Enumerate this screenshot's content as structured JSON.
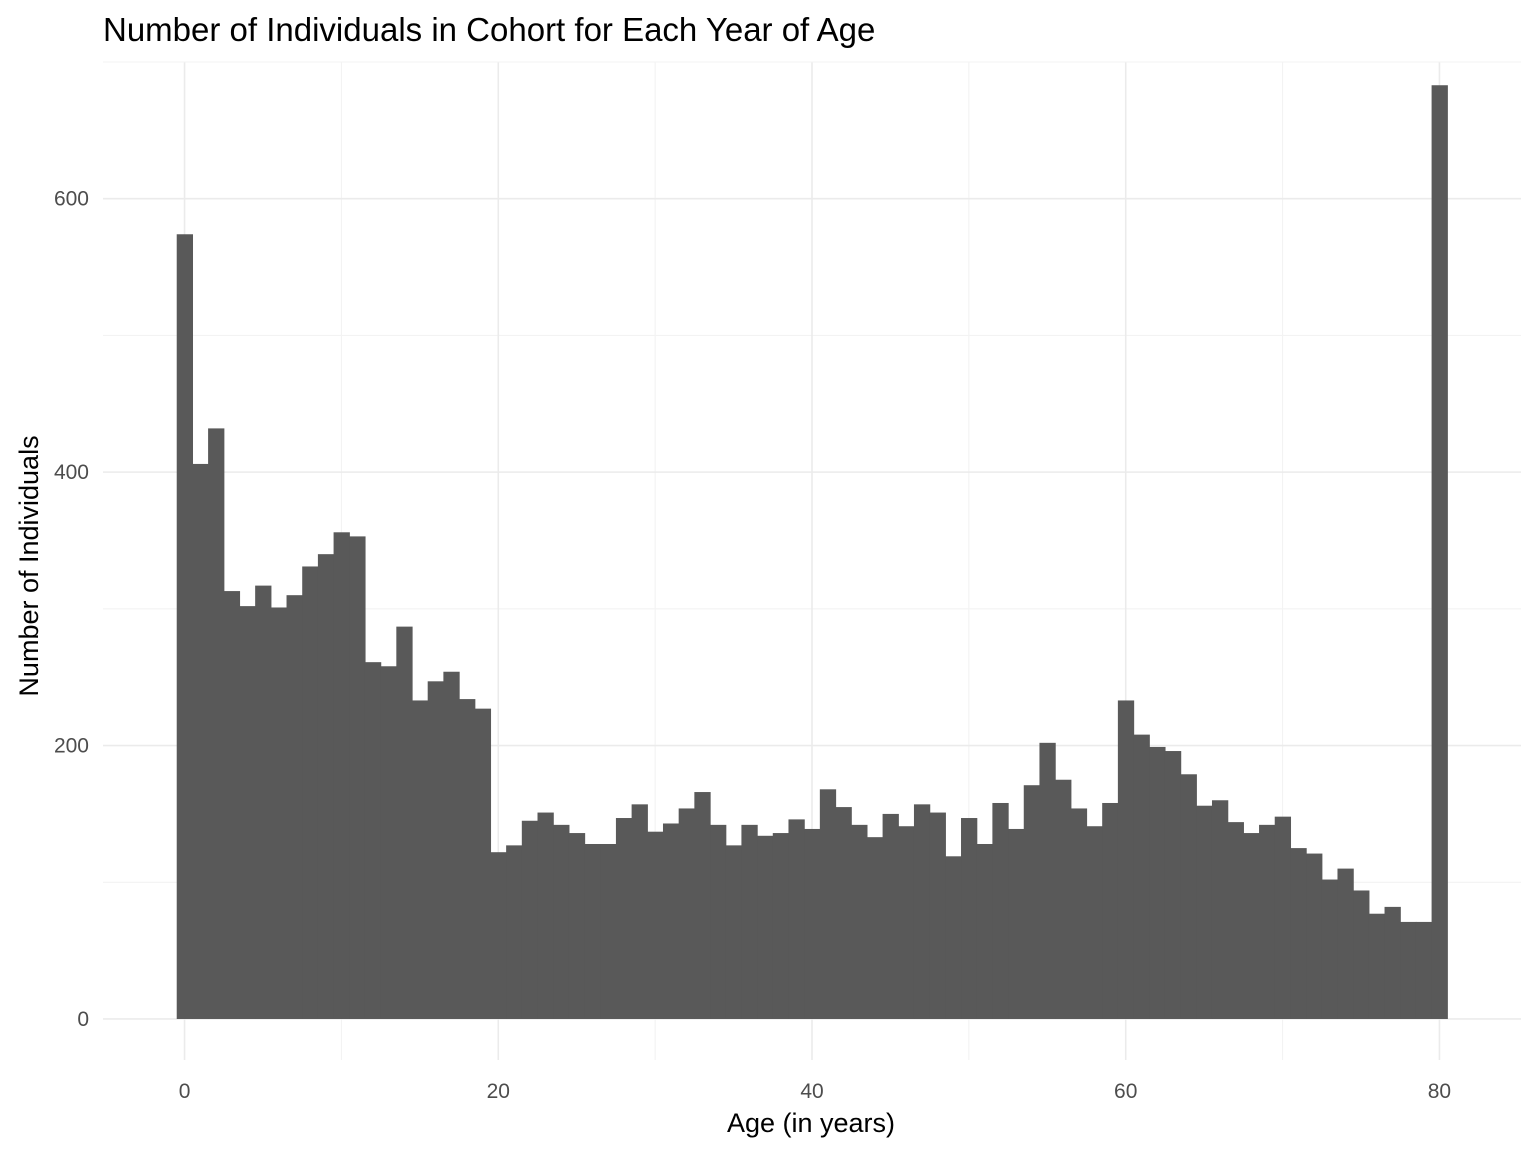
{
  "chart_data": {
    "type": "bar",
    "title": "Number of Individuals in Cohort for Each Year of Age",
    "xlabel": "Age (in years)",
    "ylabel": "Number of Individuals",
    "xlim": [
      -5.2,
      85.2
    ],
    "ylim": [
      -30,
      700
    ],
    "x_ticks": [
      0,
      20,
      40,
      60,
      80
    ],
    "x_tick_labels": [
      "0",
      "20",
      "40",
      "60",
      "80"
    ],
    "x_minor_ticks": [
      10,
      30,
      50,
      70
    ],
    "y_ticks": [
      0,
      200,
      400,
      600
    ],
    "y_tick_labels": [
      "0",
      "200",
      "400",
      "600"
    ],
    "y_minor_ticks": [
      100,
      300,
      500
    ],
    "grid": true,
    "bar_color": "#595959",
    "background": "#ffffff",
    "x": [
      0,
      1,
      2,
      3,
      4,
      5,
      6,
      7,
      8,
      9,
      10,
      11,
      12,
      13,
      14,
      15,
      16,
      17,
      18,
      19,
      20,
      21,
      22,
      23,
      24,
      25,
      26,
      27,
      28,
      29,
      30,
      31,
      32,
      33,
      34,
      35,
      36,
      37,
      38,
      39,
      40,
      41,
      42,
      43,
      44,
      45,
      46,
      47,
      48,
      49,
      50,
      51,
      52,
      53,
      54,
      55,
      56,
      57,
      58,
      59,
      60,
      61,
      62,
      63,
      64,
      65,
      66,
      67,
      68,
      69,
      70,
      71,
      72,
      73,
      74,
      75,
      76,
      77,
      78,
      79,
      80
    ],
    "values": [
      574,
      406,
      432,
      313,
      302,
      317,
      301,
      310,
      331,
      340,
      356,
      353,
      261,
      258,
      287,
      233,
      247,
      254,
      234,
      227,
      122,
      127,
      145,
      151,
      142,
      136,
      128,
      128,
      147,
      157,
      137,
      143,
      154,
      166,
      142,
      127,
      142,
      134,
      136,
      146,
      139,
      168,
      155,
      142,
      133,
      150,
      141,
      157,
      151,
      119,
      147,
      128,
      158,
      139,
      171,
      202,
      175,
      154,
      141,
      158,
      233,
      208,
      199,
      196,
      179,
      156,
      160,
      144,
      136,
      142,
      148,
      125,
      121,
      102,
      110,
      94,
      77,
      82,
      71,
      71,
      683
    ]
  }
}
